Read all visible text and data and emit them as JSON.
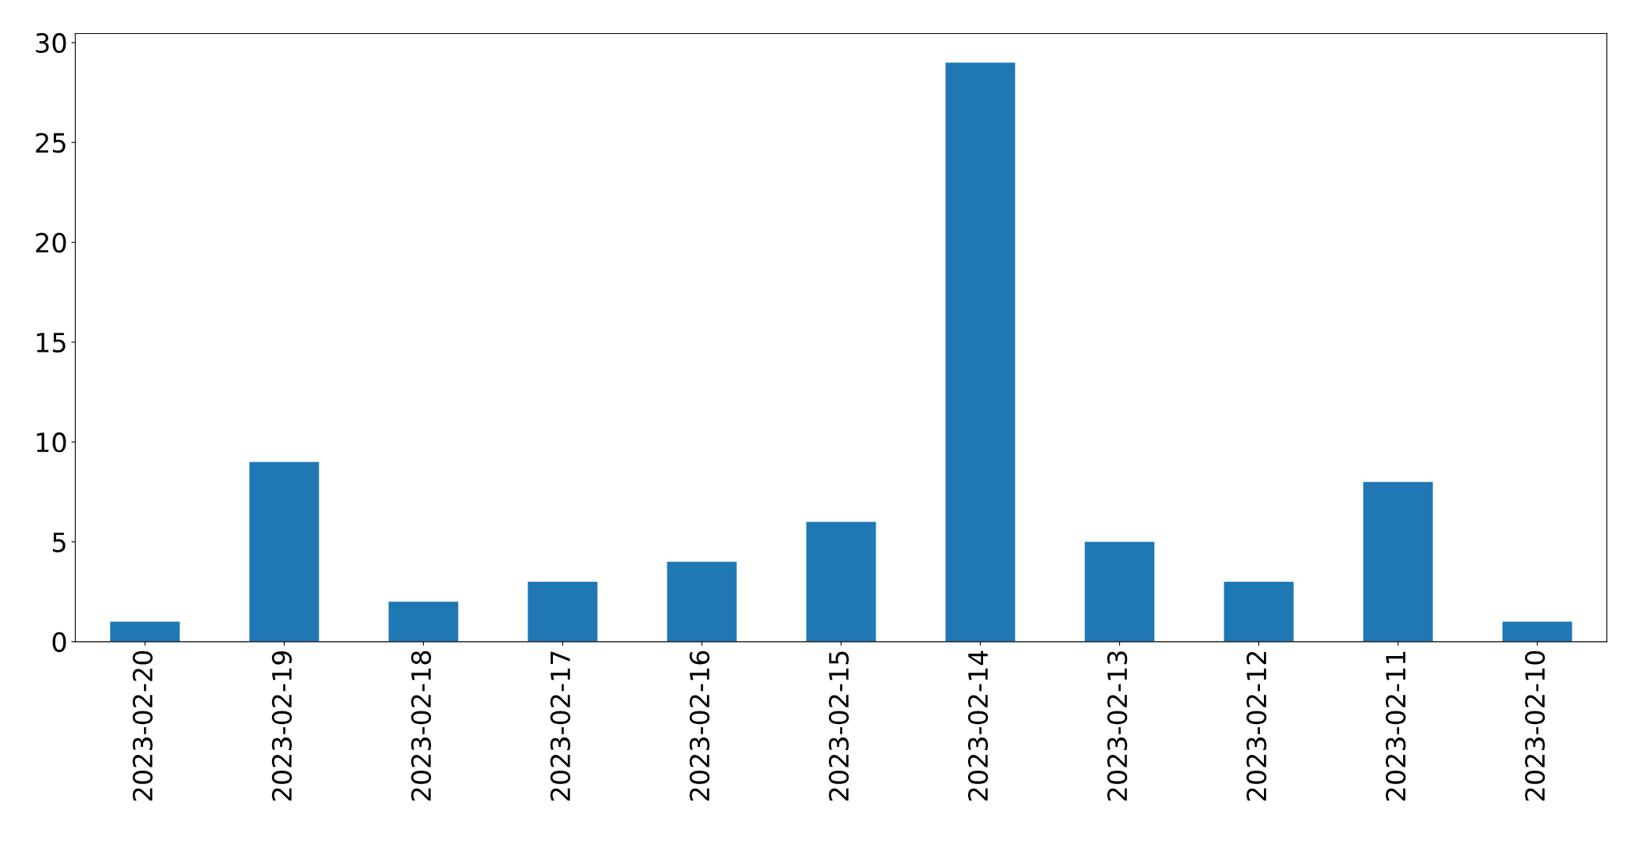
{
  "chart_data": {
    "type": "bar",
    "categories": [
      "2023-02-20",
      "2023-02-19",
      "2023-02-18",
      "2023-02-17",
      "2023-02-16",
      "2023-02-15",
      "2023-02-14",
      "2023-02-13",
      "2023-02-12",
      "2023-02-11",
      "2023-02-10"
    ],
    "values": [
      1,
      9,
      2,
      3,
      4,
      6,
      29,
      5,
      3,
      8,
      1
    ],
    "color": "#1f77b4",
    "ylim": [
      0,
      30.45
    ],
    "yticks": [
      0,
      5,
      10,
      15,
      20,
      25,
      30
    ],
    "grid": false
  }
}
